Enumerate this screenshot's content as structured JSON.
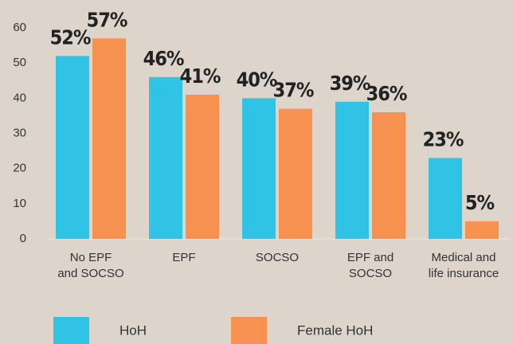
{
  "chart_data": {
    "type": "bar",
    "categories": [
      [
        "No EPF",
        "and SOCSO"
      ],
      [
        "EPF"
      ],
      [
        "SOCSO"
      ],
      [
        "EPF and",
        "SOCSO"
      ],
      [
        "Medical and",
        "life insurance"
      ]
    ],
    "series": [
      {
        "name": "HoH",
        "color": "#2fc3e5",
        "values": [
          52,
          46,
          40,
          39,
          23
        ],
        "value_labels": [
          "52%",
          "46%",
          "40%",
          "39%",
          "23%"
        ]
      },
      {
        "name": "Female HoH",
        "color": "#f7914f",
        "values": [
          57,
          41,
          37,
          36,
          5
        ],
        "value_labels": [
          "57%",
          "41%",
          "37%",
          "36%",
          "5%"
        ]
      }
    ],
    "ylim": [
      0,
      60
    ],
    "yticks": [
      0,
      10,
      20,
      30,
      40,
      50,
      60
    ]
  }
}
